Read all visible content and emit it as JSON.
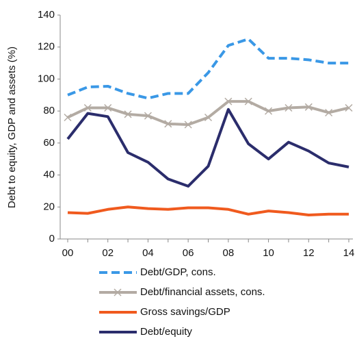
{
  "chart_data": {
    "type": "line",
    "y_label": "Debt to equity, GDP and assets (%)",
    "categories": [
      "00",
      null,
      "02",
      null,
      "04",
      null,
      "06",
      null,
      "08",
      null,
      "10",
      null,
      "12",
      null,
      "14"
    ],
    "ylim": [
      0,
      140
    ],
    "yticks": [
      0,
      20,
      40,
      60,
      80,
      100,
      120,
      140
    ],
    "series": [
      {
        "name": "Debt/GDP, cons.",
        "color": "#3a98e6",
        "dash": true,
        "values": [
          90,
          95,
          95.5,
          91,
          88,
          91,
          91,
          104,
          121,
          125,
          113,
          113,
          112,
          110,
          110
        ]
      },
      {
        "name": "Debt/financial assets, cons.",
        "color": "#b3aba3",
        "marker": "x",
        "values": [
          76,
          82,
          82,
          78,
          77,
          72,
          71.5,
          76,
          86,
          86,
          80,
          82,
          82.5,
          79,
          82
        ]
      },
      {
        "name": "Gross savings/GDP",
        "color": "#f05a1e",
        "values": [
          16.5,
          16,
          18.5,
          20,
          19,
          18.5,
          19.5,
          19.5,
          18.5,
          15.5,
          17.5,
          16.5,
          15,
          15.5,
          15.5
        ]
      },
      {
        "name": "Debt/equity",
        "color": "#2b2d6c",
        "values": [
          62.5,
          78.5,
          76.5,
          54,
          48,
          37.5,
          33,
          45.5,
          81,
          59.5,
          50,
          60.5,
          55,
          47.5,
          45
        ]
      }
    ]
  }
}
